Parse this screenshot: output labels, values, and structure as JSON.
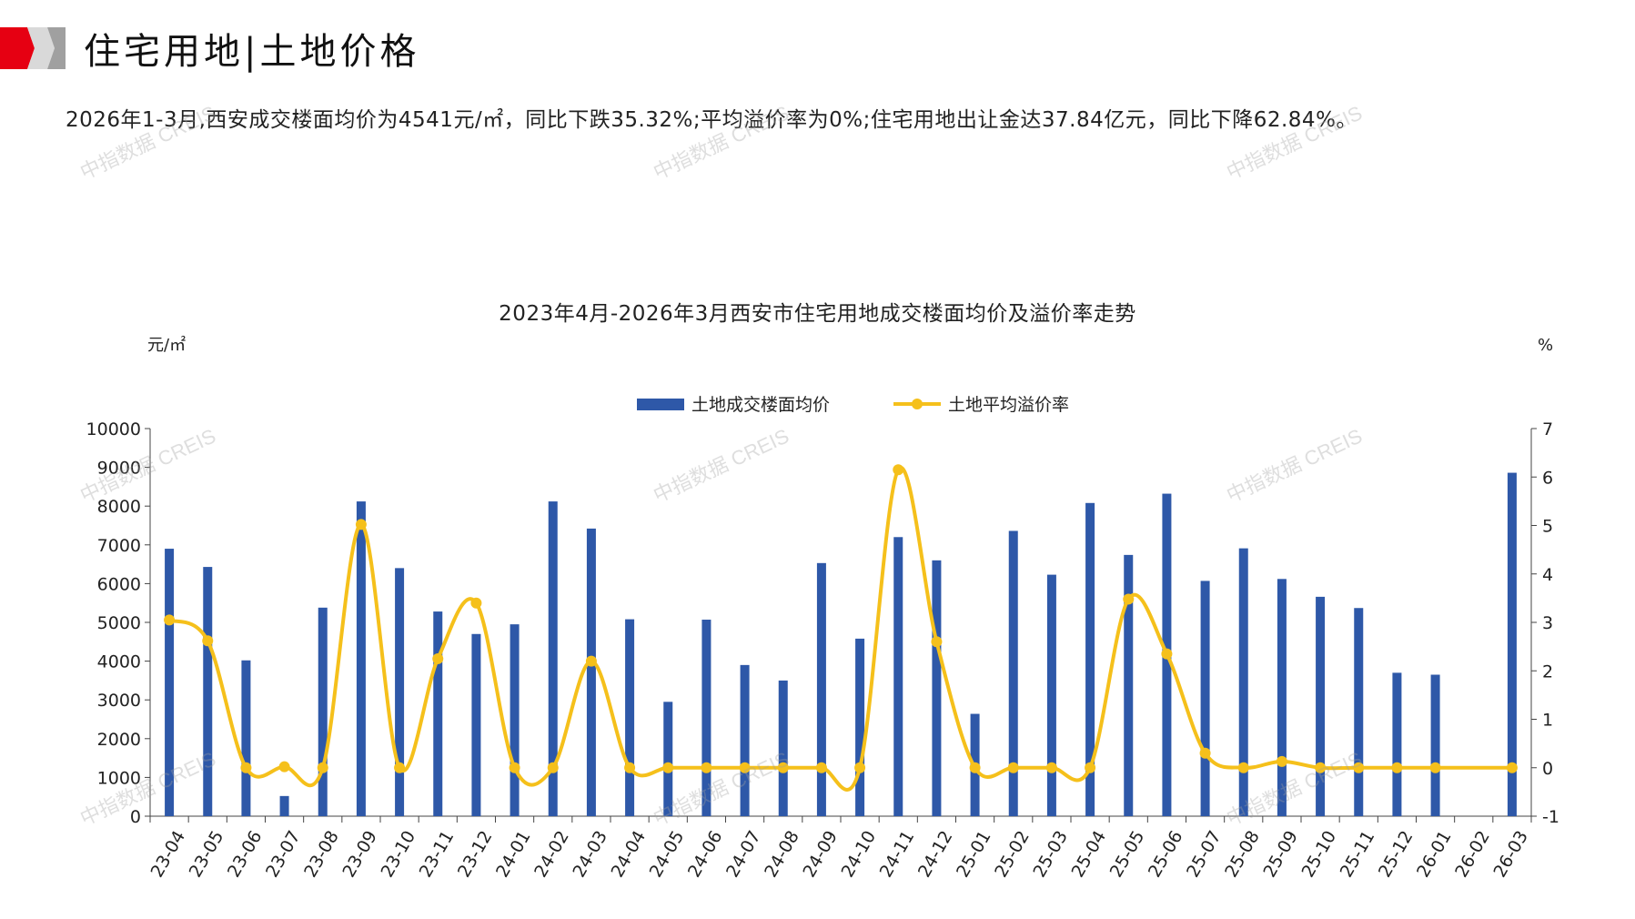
{
  "header": {
    "title": "住宅用地|土地价格"
  },
  "summary": "2026年1-3月,西安成交楼面均价为4541元/㎡，同比下跌35.32%;平均溢价率为0%;住宅用地出让金达37.84亿元，同比下降62.84%。",
  "watermark_text": "中指数据 CREIS",
  "colors": {
    "bar": "#2E58A8",
    "line": "#F5C01B",
    "logo_red": "#E60012",
    "logo_gray": "#A0A0A0"
  },
  "chart_data": {
    "type": "bar+line",
    "title": "2023年4月-2026年3月西安市住宅用地成交楼面均价及溢价率走势",
    "y_left_unit": "元/㎡",
    "y_right_unit": "%",
    "legend_position": "top-center",
    "ylim_left": [
      0,
      10000
    ],
    "ylim_right": [
      -1,
      7
    ],
    "y_left_ticks": [
      "0",
      "1000",
      "2000",
      "3000",
      "4000",
      "5000",
      "6000",
      "7000",
      "8000",
      "9000",
      "10000"
    ],
    "y_right_ticks": [
      "-1",
      "0",
      "1",
      "2",
      "3",
      "4",
      "5",
      "6",
      "7"
    ],
    "categories": [
      "23-04",
      "23-05",
      "23-06",
      "23-07",
      "23-08",
      "23-09",
      "23-10",
      "23-11",
      "23-12",
      "24-01",
      "24-02",
      "24-03",
      "24-04",
      "24-05",
      "24-06",
      "24-07",
      "24-08",
      "24-09",
      "24-10",
      "24-11",
      "24-12",
      "25-01",
      "25-02",
      "25-03",
      "25-04",
      "25-05",
      "25-06",
      "25-07",
      "25-08",
      "25-09",
      "25-10",
      "25-11",
      "25-12",
      "26-01",
      "26-02",
      "26-03"
    ],
    "series": [
      {
        "name": "土地成交楼面均价",
        "type": "bar",
        "axis": "left",
        "values": [
          6900,
          6430,
          4020,
          520,
          5380,
          8120,
          6400,
          5280,
          4700,
          4950,
          8120,
          7420,
          5080,
          2950,
          5070,
          3900,
          3500,
          6530,
          4580,
          7200,
          6600,
          2640,
          7360,
          6230,
          8080,
          6740,
          8320,
          6070,
          6910,
          6120,
          5660,
          5370,
          3700,
          3650,
          null,
          8860
        ]
      },
      {
        "name": "土地平均溢价率",
        "type": "line",
        "axis": "right",
        "values": [
          3.05,
          2.62,
          0.0,
          0.02,
          0.0,
          5.02,
          0.0,
          2.25,
          3.4,
          0.0,
          0.0,
          2.2,
          0.0,
          0.0,
          0.0,
          0.0,
          0.0,
          0.0,
          0.0,
          6.15,
          2.6,
          0.0,
          0.0,
          0.0,
          0.0,
          3.48,
          2.35,
          0.3,
          0.0,
          0.13,
          0.0,
          0.0,
          0.0,
          0.0,
          null,
          0.0
        ]
      }
    ]
  }
}
